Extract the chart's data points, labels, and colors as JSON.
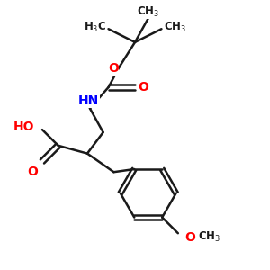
{
  "bg_color": "#ffffff",
  "bond_color": "#1a1a1a",
  "bond_width": 1.8,
  "atom_colors": {
    "O": "#ff0000",
    "N": "#0000ff",
    "C": "#1a1a1a"
  },
  "font_size_label": 10,
  "font_size_small": 8.5
}
